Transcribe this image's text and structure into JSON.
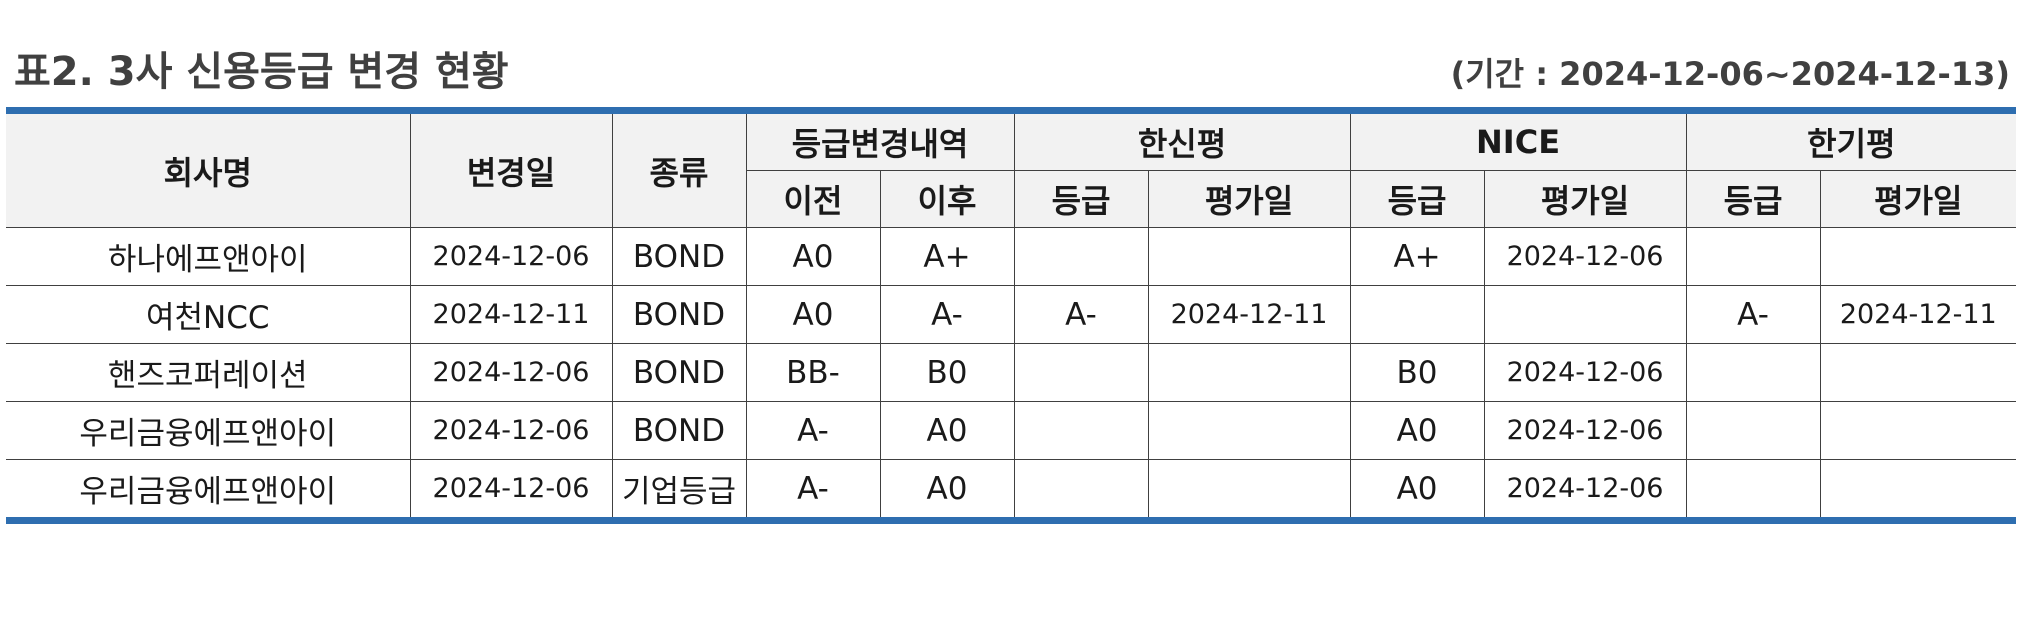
{
  "title": "표2. 3사 신용등급 변경 현황",
  "period": "(기간 : 2024-12-06~2024-12-13)",
  "headers": {
    "company": "회사명",
    "change_date": "변경일",
    "type": "종류",
    "change_group": "등급변경내역",
    "before": "이전",
    "after": "이후",
    "agency1": "한신평",
    "agency2": "NICE",
    "agency3": "한기평",
    "grade": "등급",
    "eval_date": "평가일"
  },
  "rows": [
    {
      "company": "하나에프앤아이",
      "date": "2024-12-06",
      "type": "BOND",
      "before": "A0",
      "after": "A+",
      "a1_grade": "",
      "a1_date": "",
      "a2_grade": "A+",
      "a2_date": "2024-12-06",
      "a3_grade": "",
      "a3_date": ""
    },
    {
      "company": "여천NCC",
      "date": "2024-12-11",
      "type": "BOND",
      "before": "A0",
      "after": "A-",
      "a1_grade": "A-",
      "a1_date": "2024-12-11",
      "a2_grade": "",
      "a2_date": "",
      "a3_grade": "A-",
      "a3_date": "2024-12-11"
    },
    {
      "company": "핸즈코퍼레이션",
      "date": "2024-12-06",
      "type": "BOND",
      "before": "BB-",
      "after": "B0",
      "a1_grade": "",
      "a1_date": "",
      "a2_grade": "B0",
      "a2_date": "2024-12-06",
      "a3_grade": "",
      "a3_date": ""
    },
    {
      "company": "우리금융에프앤아이",
      "date": "2024-12-06",
      "type": "BOND",
      "before": "A-",
      "after": "A0",
      "a1_grade": "",
      "a1_date": "",
      "a2_grade": "A0",
      "a2_date": "2024-12-06",
      "a3_grade": "",
      "a3_date": ""
    },
    {
      "company": "우리금융에프앤아이",
      "date": "2024-12-06",
      "type": "기업등급",
      "before": "A-",
      "after": "A0",
      "a1_grade": "",
      "a1_date": "",
      "a2_grade": "A0",
      "a2_date": "2024-12-06",
      "a3_grade": "",
      "a3_date": ""
    }
  ]
}
